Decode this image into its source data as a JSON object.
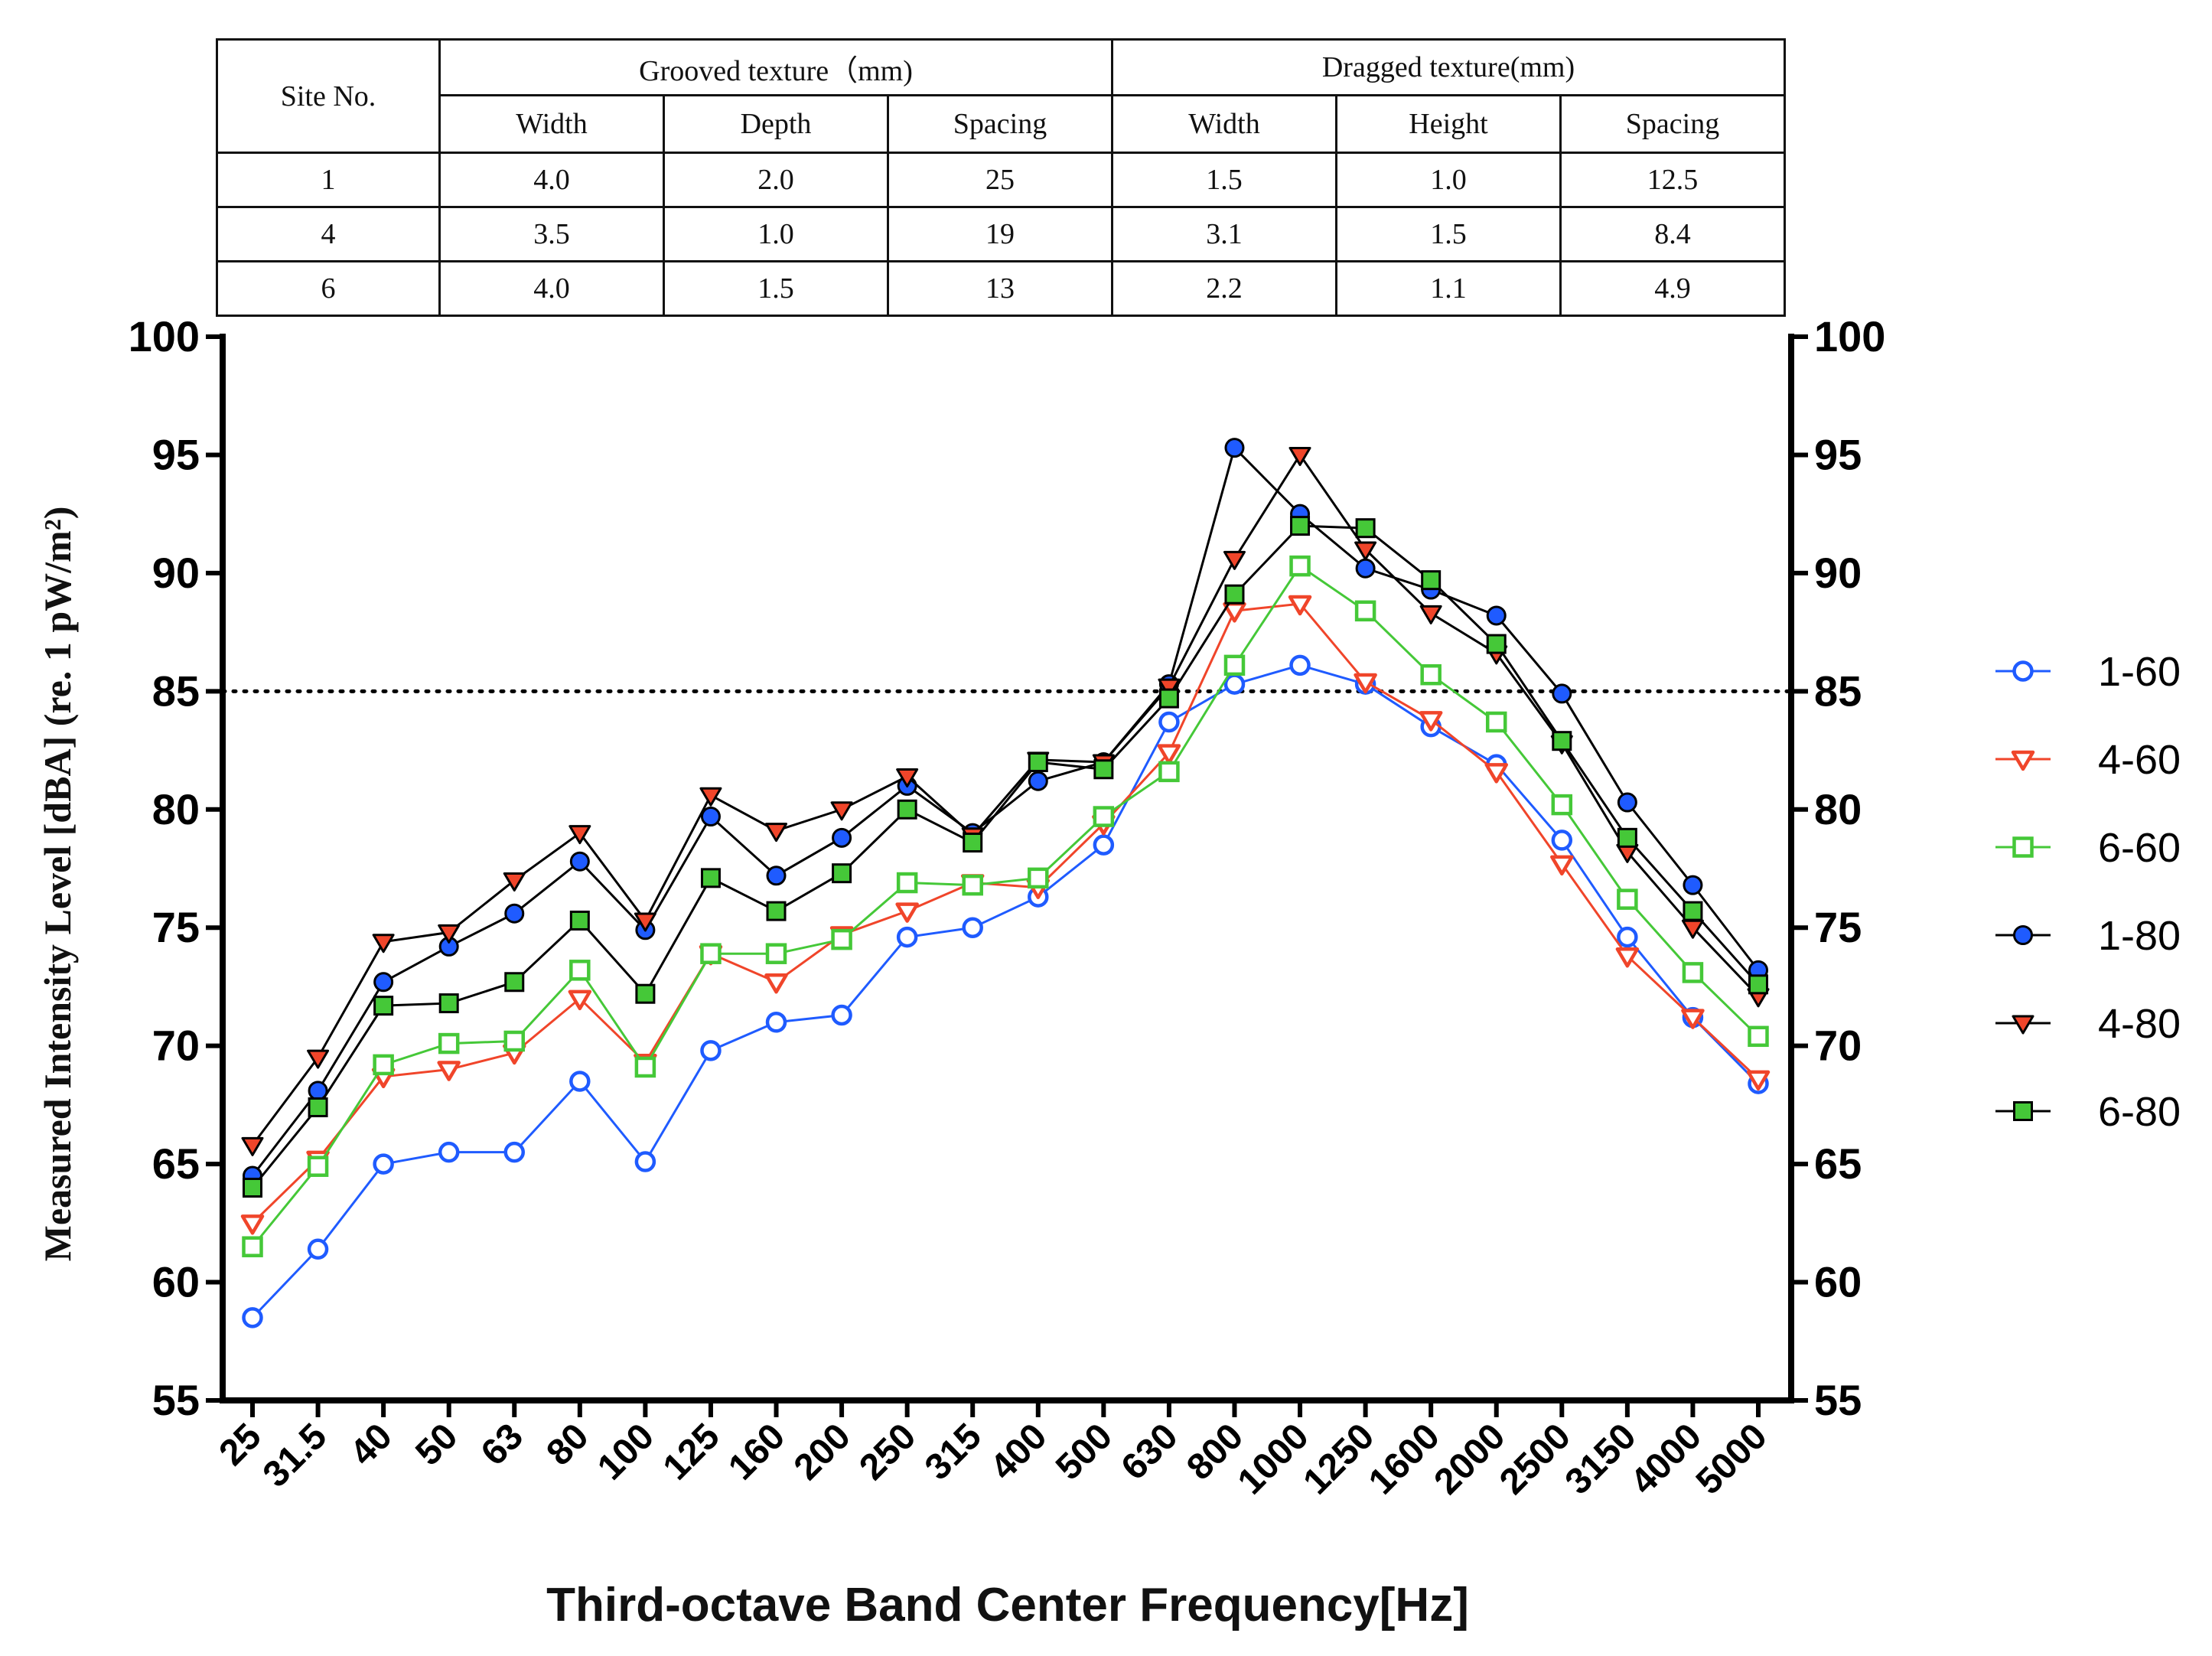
{
  "table": {
    "site_header": "Site No.",
    "groups": [
      "Grooved texture（mm)",
      "Dragged texture(mm)"
    ],
    "columns": [
      "Width",
      "Depth",
      "Spacing",
      "Width",
      "Height",
      "Spacing"
    ],
    "rows": [
      [
        "1",
        "4.0",
        "2.0",
        "25",
        "1.5",
        "1.0",
        "12.5"
      ],
      [
        "4",
        "3.5",
        "1.0",
        "19",
        "3.1",
        "1.5",
        "8.4"
      ],
      [
        "6",
        "4.0",
        "1.5",
        "13",
        "2.2",
        "1.1",
        "4.9"
      ]
    ]
  },
  "chart_data": {
    "type": "line",
    "title": "",
    "xlabel": "Third-octave Band Center Frequency[Hz]",
    "ylabel": "Measured Intensity Level [dBA] (re. 1 pW/m²)",
    "categories": [
      "25",
      "31.5",
      "40",
      "50",
      "63",
      "80",
      "100",
      "125",
      "160",
      "200",
      "250",
      "315",
      "400",
      "500",
      "630",
      "800",
      "1000",
      "1250",
      "1600",
      "2000",
      "2500",
      "3150",
      "4000",
      "5000"
    ],
    "ylim": [
      55,
      100
    ],
    "yticks": [
      "55",
      "60",
      "65",
      "70",
      "75",
      "80",
      "85",
      "90",
      "95",
      "100"
    ],
    "reference_line": 85,
    "legend_position": "right",
    "series": [
      {
        "name": "1-60",
        "color": "#1f5bff",
        "marker": "circle-open",
        "values": [
          58.5,
          61.4,
          65.0,
          65.5,
          65.5,
          68.5,
          65.1,
          69.8,
          71.0,
          71.3,
          74.6,
          75.0,
          76.3,
          78.5,
          83.7,
          85.3,
          86.1,
          85.3,
          83.5,
          81.9,
          78.7,
          74.6,
          71.2,
          68.4
        ]
      },
      {
        "name": "4-60",
        "color": "#f0452a",
        "marker": "triangle-down-open",
        "values": [
          62.5,
          65.2,
          68.7,
          69.0,
          69.7,
          72.0,
          69.3,
          73.9,
          72.7,
          74.7,
          75.7,
          76.9,
          76.7,
          79.4,
          82.4,
          88.4,
          88.7,
          85.4,
          83.8,
          81.6,
          77.7,
          73.8,
          71.2,
          68.6
        ]
      },
      {
        "name": "6-60",
        "color": "#45c838",
        "marker": "square-open",
        "values": [
          61.5,
          64.9,
          69.2,
          70.1,
          70.2,
          73.2,
          69.1,
          73.9,
          73.9,
          74.5,
          76.9,
          76.8,
          77.1,
          79.7,
          81.6,
          86.1,
          90.3,
          88.4,
          85.7,
          83.7,
          80.2,
          76.2,
          73.1,
          70.4
        ]
      },
      {
        "name": "1-80",
        "color": "#1f5bff",
        "line": "#000000",
        "marker": "circle-filled",
        "values": [
          64.5,
          68.1,
          72.7,
          74.2,
          75.6,
          77.8,
          74.9,
          79.7,
          77.2,
          78.8,
          81.0,
          79.0,
          81.2,
          82.0,
          85.3,
          95.3,
          92.5,
          90.2,
          89.3,
          88.2,
          84.9,
          80.3,
          76.8,
          73.2
        ]
      },
      {
        "name": "4-80",
        "color": "#f0452a",
        "line": "#000000",
        "marker": "triangle-down-filled",
        "values": [
          65.8,
          69.5,
          74.4,
          74.8,
          77.0,
          79.0,
          75.3,
          80.6,
          79.1,
          80.0,
          81.4,
          78.9,
          82.1,
          82.0,
          85.2,
          90.6,
          95.0,
          91.0,
          88.3,
          86.6,
          82.8,
          78.2,
          75.0,
          72.1
        ]
      },
      {
        "name": "6-80",
        "color": "#45c838",
        "line": "#000000",
        "marker": "square-filled",
        "values": [
          64.0,
          67.4,
          71.7,
          71.8,
          72.7,
          75.3,
          72.2,
          77.1,
          75.7,
          77.3,
          80.0,
          78.6,
          82.0,
          81.7,
          84.7,
          89.1,
          92.0,
          91.9,
          89.7,
          87.0,
          82.9,
          78.8,
          75.7,
          72.6
        ]
      }
    ]
  }
}
